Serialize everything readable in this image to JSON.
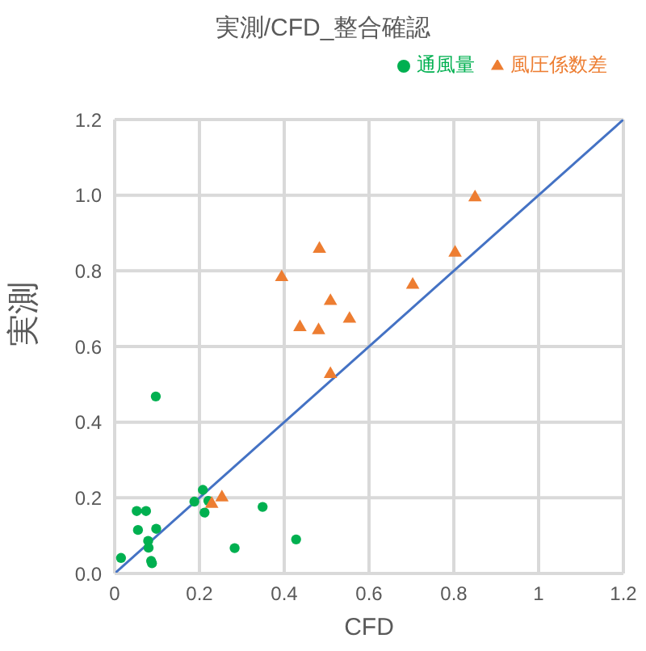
{
  "chart_data": {
    "type": "scatter",
    "title": "実測/CFD_整合確認",
    "xlabel": "CFD",
    "ylabel": "実測",
    "xlim": [
      0,
      1.2
    ],
    "ylim": [
      0,
      1.2
    ],
    "xticks": [
      0,
      0.2,
      0.4,
      0.6,
      0.8,
      1,
      1.2
    ],
    "yticks": [
      {
        "value": 0,
        "label": "0.0"
      },
      0.2,
      0.4,
      0.6,
      0.8,
      {
        "value": 1,
        "label": "1.0"
      },
      1.2
    ],
    "grid": true,
    "legend": "top right",
    "series": [
      {
        "name": "通風量",
        "color": "#00b050",
        "marker": "circle",
        "x": [
          0.015,
          0.052,
          0.074,
          0.055,
          0.098,
          0.079,
          0.08,
          0.086,
          0.088,
          0.097,
          0.188,
          0.208,
          0.221,
          0.212,
          0.283,
          0.349,
          0.428
        ],
        "values": [
          0.041,
          0.165,
          0.165,
          0.115,
          0.118,
          0.086,
          0.068,
          0.033,
          0.027,
          0.468,
          0.19,
          0.221,
          0.192,
          0.161,
          0.067,
          0.176,
          0.09
        ]
      },
      {
        "name": "風圧係数差",
        "color": "#ed7d31",
        "marker": "triangle",
        "x": [
          0.85,
          0.803,
          0.483,
          0.394,
          0.703,
          0.509,
          0.554,
          0.437,
          0.481,
          0.509,
          0.229,
          0.253
        ],
        "values": [
          0.994,
          0.848,
          0.858,
          0.783,
          0.763,
          0.72,
          0.673,
          0.651,
          0.643,
          0.527,
          0.184,
          0.201
        ]
      },
      {
        "type": "line",
        "color": "#4472c4",
        "marker": "none",
        "x": [
          0,
          1.2
        ],
        "values": [
          0,
          1.2
        ]
      }
    ]
  }
}
